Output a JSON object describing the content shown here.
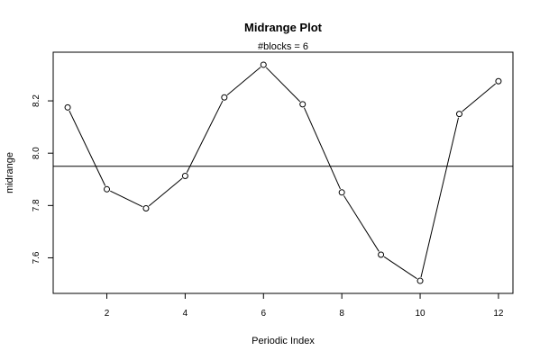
{
  "chart_data": {
    "type": "line",
    "title": "Midrange Plot",
    "subtitle": "#blocks =  6",
    "xlabel": "Periodic Index",
    "ylabel": "midrange",
    "x": [
      1,
      2,
      3,
      4,
      5,
      6,
      7,
      8,
      9,
      10,
      11,
      12
    ],
    "series": [
      {
        "values": [
          8.175,
          7.862,
          7.789,
          7.913,
          8.213,
          8.338,
          8.187,
          7.85,
          7.612,
          7.512,
          8.15,
          8.275
        ]
      }
    ],
    "reference_line": 7.95,
    "xlim": [
      0.63,
      12.37
    ],
    "ylim": [
      7.464,
      8.386
    ],
    "x_ticks": [
      2,
      4,
      6,
      8,
      10,
      12
    ],
    "y_ticks": [
      7.6,
      7.8,
      8.0,
      8.2
    ],
    "x_tick_labels": [
      "2",
      "4",
      "6",
      "8",
      "10",
      "12"
    ],
    "y_tick_labels": [
      "7.6",
      "7.8",
      "8.0",
      "8.2"
    ],
    "marker": "open-circle",
    "grid": false,
    "legend": "none",
    "colors": {
      "line": "#000000",
      "marker_fill": "#ffffff"
    }
  }
}
